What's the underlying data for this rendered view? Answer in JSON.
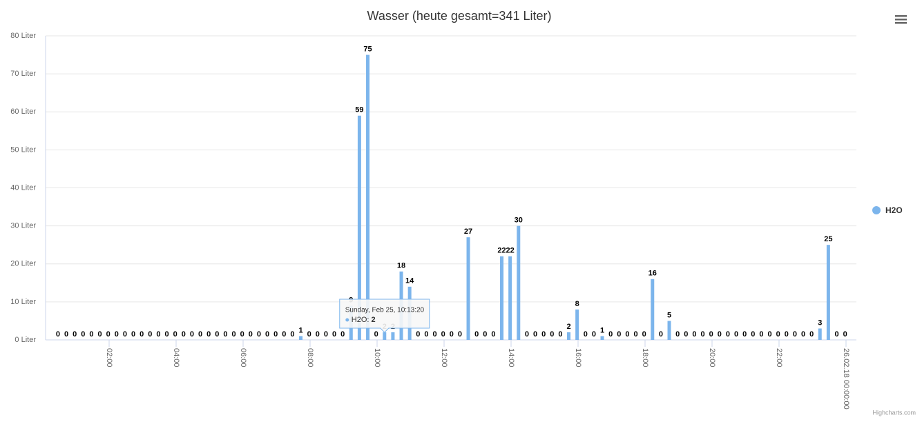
{
  "chart_data": {
    "type": "bar",
    "title": "Wasser (heute gesamt=341 Liter)",
    "x": [
      "00:28:20",
      "00:43:20",
      "00:58:20",
      "01:13:20",
      "01:28:20",
      "01:43:20",
      "01:58:20",
      "02:13:20",
      "02:28:20",
      "02:43:20",
      "02:58:20",
      "03:13:20",
      "03:28:20",
      "03:43:20",
      "03:58:20",
      "04:13:20",
      "04:28:20",
      "04:43:20",
      "04:58:20",
      "05:13:20",
      "05:28:20",
      "05:43:20",
      "05:58:20",
      "06:13:20",
      "06:28:20",
      "06:43:20",
      "06:58:20",
      "07:13:20",
      "07:28:20",
      "07:43:20",
      "07:58:20",
      "08:13:20",
      "08:28:20",
      "08:43:20",
      "08:58:20",
      "09:13:20",
      "09:28:20",
      "09:43:20",
      "09:58:20",
      "10:13:20",
      "10:28:20",
      "10:43:20",
      "10:58:20",
      "11:13:20",
      "11:28:20",
      "11:43:20",
      "11:58:20",
      "12:13:20",
      "12:28:20",
      "12:43:20",
      "12:58:20",
      "13:13:20",
      "13:28:20",
      "13:43:20",
      "13:58:20",
      "14:13:20",
      "14:28:20",
      "14:43:20",
      "14:58:20",
      "15:13:20",
      "15:28:20",
      "15:43:20",
      "15:58:20",
      "16:13:20",
      "16:28:20",
      "16:43:20",
      "16:58:20",
      "17:13:20",
      "17:28:20",
      "17:43:20",
      "17:58:20",
      "18:13:20",
      "18:28:20",
      "18:43:20",
      "18:58:20",
      "19:13:20",
      "19:28:20",
      "19:43:20",
      "19:58:20",
      "20:13:20",
      "20:28:20",
      "20:43:20",
      "20:58:20",
      "21:13:20",
      "21:28:20",
      "21:43:20",
      "21:58:20",
      "22:13:20",
      "22:28:20",
      "22:43:20",
      "22:58:20",
      "23:13:20",
      "23:28:20",
      "23:43:20",
      "23:58:20"
    ],
    "series": [
      {
        "name": "H2O",
        "color": "#7cb5ec",
        "values": [
          0,
          0,
          0,
          0,
          0,
          0,
          0,
          0,
          0,
          0,
          0,
          0,
          0,
          0,
          0,
          0,
          0,
          0,
          0,
          0,
          0,
          0,
          0,
          0,
          0,
          0,
          0,
          0,
          0,
          1,
          0,
          0,
          0,
          0,
          0,
          9,
          59,
          75,
          0,
          2,
          2,
          18,
          14,
          0,
          0,
          0,
          0,
          0,
          0,
          27,
          0,
          0,
          0,
          22,
          22,
          30,
          0,
          0,
          0,
          0,
          0,
          2,
          8,
          0,
          0,
          1,
          0,
          0,
          0,
          0,
          0,
          16,
          0,
          5,
          0,
          0,
          0,
          0,
          0,
          0,
          0,
          0,
          0,
          0,
          0,
          0,
          0,
          0,
          0,
          0,
          0,
          3,
          25,
          0,
          0
        ]
      }
    ],
    "xlim": [
      "00:06:10",
      "24:18:35"
    ],
    "xticks": [
      {
        "value": "02:00:00",
        "label": "02:00"
      },
      {
        "value": "04:00:00",
        "label": "04:00"
      },
      {
        "value": "06:00:00",
        "label": "06:00"
      },
      {
        "value": "08:00:00",
        "label": "08:00"
      },
      {
        "value": "10:00:00",
        "label": "10:00"
      },
      {
        "value": "12:00:00",
        "label": "12:00"
      },
      {
        "value": "14:00:00",
        "label": "14:00"
      },
      {
        "value": "16:00:00",
        "label": "16:00"
      },
      {
        "value": "18:00:00",
        "label": "18:00"
      },
      {
        "value": "20:00:00",
        "label": "20:00"
      },
      {
        "value": "22:00:00",
        "label": "22:00"
      },
      {
        "value": "24:00:00",
        "label": "26.02.18 00:00:00"
      }
    ],
    "ylim": [
      0,
      80
    ],
    "yticks": [
      {
        "value": 0,
        "label": "0 Liter"
      },
      {
        "value": 10,
        "label": "10 Liter"
      },
      {
        "value": 20,
        "label": "20 Liter"
      },
      {
        "value": 30,
        "label": "30 Liter"
      },
      {
        "value": 40,
        "label": "40 Liter"
      },
      {
        "value": 50,
        "label": "50 Liter"
      },
      {
        "value": 60,
        "label": "60 Liter"
      },
      {
        "value": 70,
        "label": "70 Liter"
      },
      {
        "value": 80,
        "label": "80 Liter"
      }
    ],
    "grid": true,
    "legend": "right",
    "tooltip": {
      "title": "Sunday, Feb 25, 10:13:20"
    },
    "credits": "Highcharts.com"
  }
}
